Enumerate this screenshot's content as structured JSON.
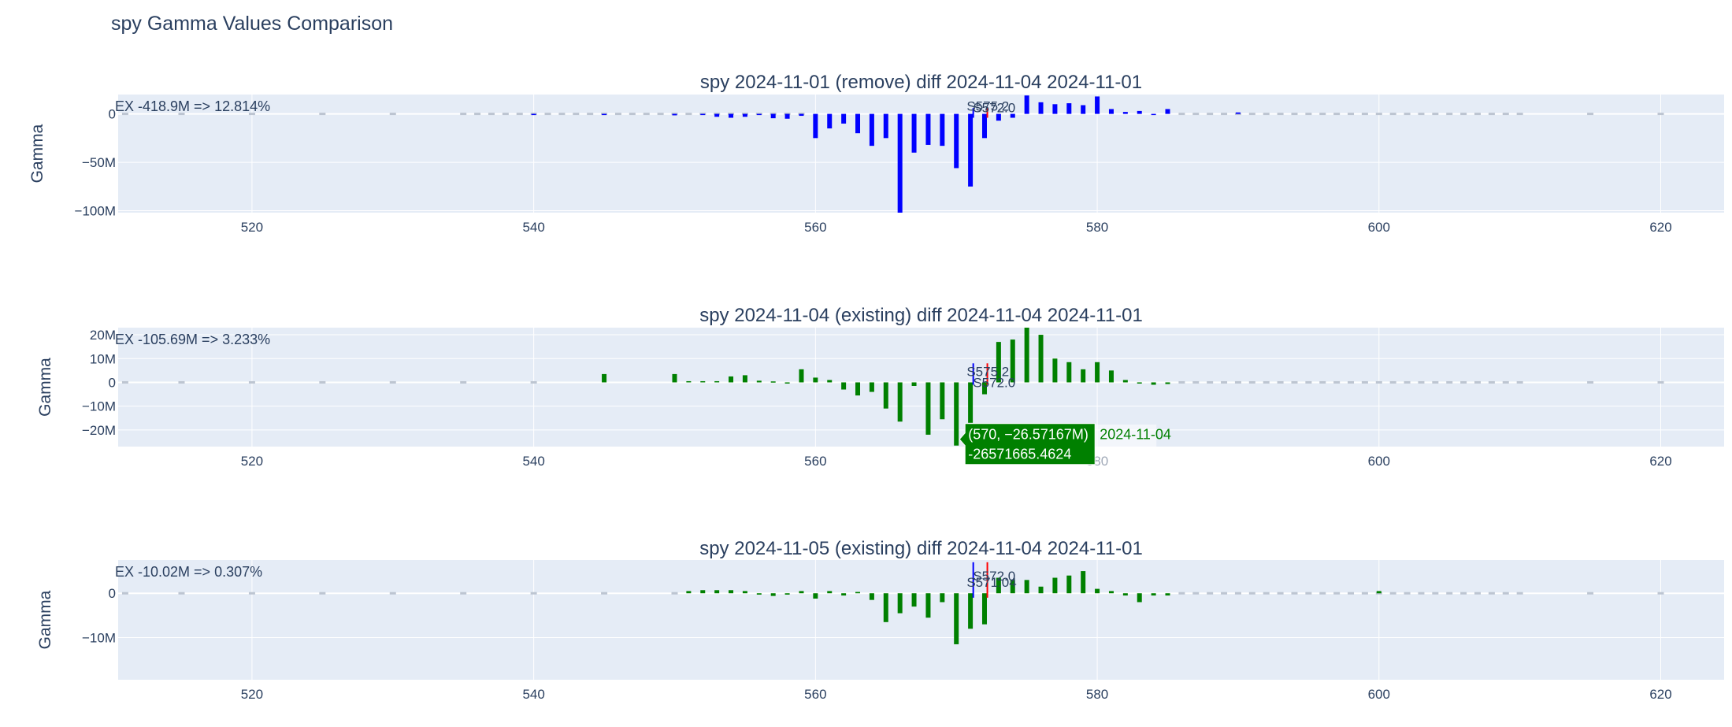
{
  "page": {
    "title": "spy Gamma Values Comparison"
  },
  "colors": {
    "plot_bg": "#e5ecf6",
    "grid": "#ffffff",
    "text": "#2a3f5f",
    "blue": "#0000ff",
    "green": "#008000",
    "ghost": "#b6bfcc",
    "spot_blue": "#0000ff",
    "spot_red": "#ff0000"
  },
  "chart_data": [
    {
      "type": "bar",
      "title": "spy 2024-11-01 (remove) diff 2024-11-04 2024-11-01",
      "ylabel": "Gamma",
      "xlim": [
        510.5,
        624.5
      ],
      "ylim": [
        -102,
        20
      ],
      "y_unit": "M",
      "x_ticks": [
        520,
        540,
        560,
        580,
        600,
        620
      ],
      "y_ticks": [
        {
          "value": 0,
          "label": "0"
        },
        {
          "value": -50,
          "label": "−50M"
        },
        {
          "value": -100,
          "label": "−100M"
        }
      ],
      "color": "#0000ff",
      "annotation": "EX -418.9M => 12.814%",
      "spot_labels": [
        "S575.2",
        "S572.0"
      ],
      "spot_lines": [
        {
          "x": 571.2,
          "color": "#0000ff",
          "from": -4,
          "to": 6
        },
        {
          "x": 572.2,
          "color": "#ff0000",
          "from": -4,
          "to": 6
        }
      ],
      "ghost_x": [
        511,
        515,
        520,
        525,
        530,
        535,
        536,
        537,
        538,
        539,
        540,
        541,
        542,
        543,
        544,
        545,
        546,
        547,
        548,
        549,
        550,
        551,
        552,
        553,
        554,
        555,
        556,
        557,
        558,
        559,
        586,
        587,
        588,
        589,
        590,
        591,
        592,
        593,
        594,
        595,
        596,
        597,
        598,
        599,
        600,
        601,
        602,
        603,
        604,
        605,
        606,
        607,
        608,
        609,
        610,
        615,
        620
      ],
      "x": [
        540,
        545,
        550,
        552,
        553,
        554,
        555,
        556,
        557,
        558,
        559,
        560,
        561,
        562,
        563,
        564,
        565,
        566,
        567,
        568,
        569,
        570,
        571,
        572,
        573,
        574,
        575,
        576,
        577,
        578,
        579,
        580,
        581,
        582,
        583,
        584,
        585,
        590
      ],
      "values": [
        -0.5,
        -1,
        -1.5,
        -1,
        -3,
        -4,
        -3,
        -1,
        -4.5,
        -5,
        -2,
        -25,
        -15,
        -10,
        -20,
        -33,
        -25,
        -102,
        -40,
        -32,
        -33,
        -56,
        -75,
        -25,
        -7,
        -4,
        19,
        12,
        10,
        11,
        9,
        18,
        5,
        2,
        3,
        -1,
        5,
        1.5
      ]
    },
    {
      "type": "bar",
      "title": "spy 2024-11-04 (existing) diff 2024-11-04 2024-11-01",
      "ylabel": "Gamma",
      "xlim": [
        510.5,
        624.5
      ],
      "ylim": [
        -27,
        23
      ],
      "y_unit": "M",
      "x_ticks": [
        520,
        540,
        560,
        580,
        600,
        620
      ],
      "y_ticks": [
        {
          "value": 20,
          "label": "20M"
        },
        {
          "value": 10,
          "label": "10M"
        },
        {
          "value": 0,
          "label": "0"
        },
        {
          "value": -10,
          "label": "−10M"
        },
        {
          "value": -20,
          "label": "−20M"
        }
      ],
      "color": "#008000",
      "annotation": "EX -105.69M => 3.233%",
      "spot_labels": [
        "S575.2",
        "S572.0"
      ],
      "spot_lines": [
        {
          "x": 571.2,
          "color": "#0000ff",
          "from": -1,
          "to": 8
        },
        {
          "x": 572.2,
          "color": "#ff0000",
          "from": -1,
          "to": 8
        }
      ],
      "ghost_x": [
        511,
        515,
        520,
        525,
        530,
        535,
        540,
        586,
        587,
        588,
        589,
        590,
        591,
        592,
        593,
        594,
        595,
        596,
        597,
        598,
        599,
        600,
        601,
        602,
        603,
        604,
        605,
        606,
        607,
        608,
        609,
        610,
        615,
        620
      ],
      "x": [
        545,
        550,
        551,
        552,
        553,
        554,
        555,
        556,
        557,
        558,
        559,
        560,
        561,
        562,
        563,
        564,
        565,
        566,
        567,
        568,
        569,
        570,
        571,
        572,
        573,
        574,
        575,
        576,
        577,
        578,
        579,
        580,
        581,
        582,
        583,
        584,
        585
      ],
      "values": [
        3.5,
        3.5,
        0.5,
        0.5,
        0.5,
        2.5,
        3,
        0.7,
        0.4,
        -0.5,
        5.5,
        2,
        1,
        -3,
        -5.5,
        -4,
        -11,
        -16.5,
        -1.5,
        -22,
        -15.5,
        -26.57,
        -17,
        -5,
        17,
        18,
        23,
        20,
        10,
        8.5,
        5.5,
        8.5,
        5,
        1,
        -0.5,
        -1,
        -0.7
      ]
    },
    {
      "type": "bar",
      "title": "spy 2024-11-05 (existing) diff 2024-11-04 2024-11-01",
      "ylabel": "Gamma",
      "xlim": [
        510.5,
        624.5
      ],
      "ylim": [
        -19.5,
        7.5
      ],
      "y_unit": "M",
      "x_ticks": [
        520,
        540,
        560,
        580,
        600,
        620
      ],
      "y_ticks": [
        {
          "value": 0,
          "label": "0"
        },
        {
          "value": -10,
          "label": "−10M"
        }
      ],
      "color": "#008000",
      "annotation": "EX -10.02M => 0.307%",
      "spot_labels": [
        "S571.04",
        "S572.0"
      ],
      "spot_lines": [
        {
          "x": 571.2,
          "color": "#0000ff",
          "from": -1,
          "to": 7
        },
        {
          "x": 572.2,
          "color": "#ff0000",
          "from": -1,
          "to": 7
        }
      ],
      "ghost_x": [
        511,
        515,
        520,
        525,
        530,
        535,
        540,
        545,
        550,
        586,
        587,
        588,
        589,
        590,
        591,
        592,
        593,
        594,
        595,
        596,
        597,
        598,
        599,
        600,
        601,
        602,
        603,
        604,
        605,
        606,
        607,
        608,
        609,
        610,
        615,
        620
      ],
      "x": [
        551,
        552,
        553,
        554,
        555,
        556,
        557,
        558,
        559,
        560,
        561,
        562,
        563,
        564,
        565,
        566,
        567,
        568,
        569,
        570,
        571,
        572,
        573,
        574,
        575,
        576,
        577,
        578,
        579,
        580,
        581,
        582,
        583,
        584,
        585,
        600
      ],
      "values": [
        0.5,
        0.7,
        0.7,
        0.7,
        0.5,
        -0.3,
        -0.6,
        -0.3,
        0.5,
        -1.2,
        0.5,
        -0.5,
        0.3,
        -1.5,
        -6.5,
        -4.5,
        -3,
        -5.5,
        -2,
        -11.5,
        -8,
        -7,
        3.5,
        3,
        3,
        1.5,
        3.5,
        4,
        5,
        1,
        0.5,
        -0.5,
        -2,
        -0.5,
        -0.5,
        0.5
      ]
    }
  ],
  "hover": {
    "coord": "(570, −26.57167M)",
    "value": "-26571665.4624",
    "trace": "2024-11-04"
  }
}
